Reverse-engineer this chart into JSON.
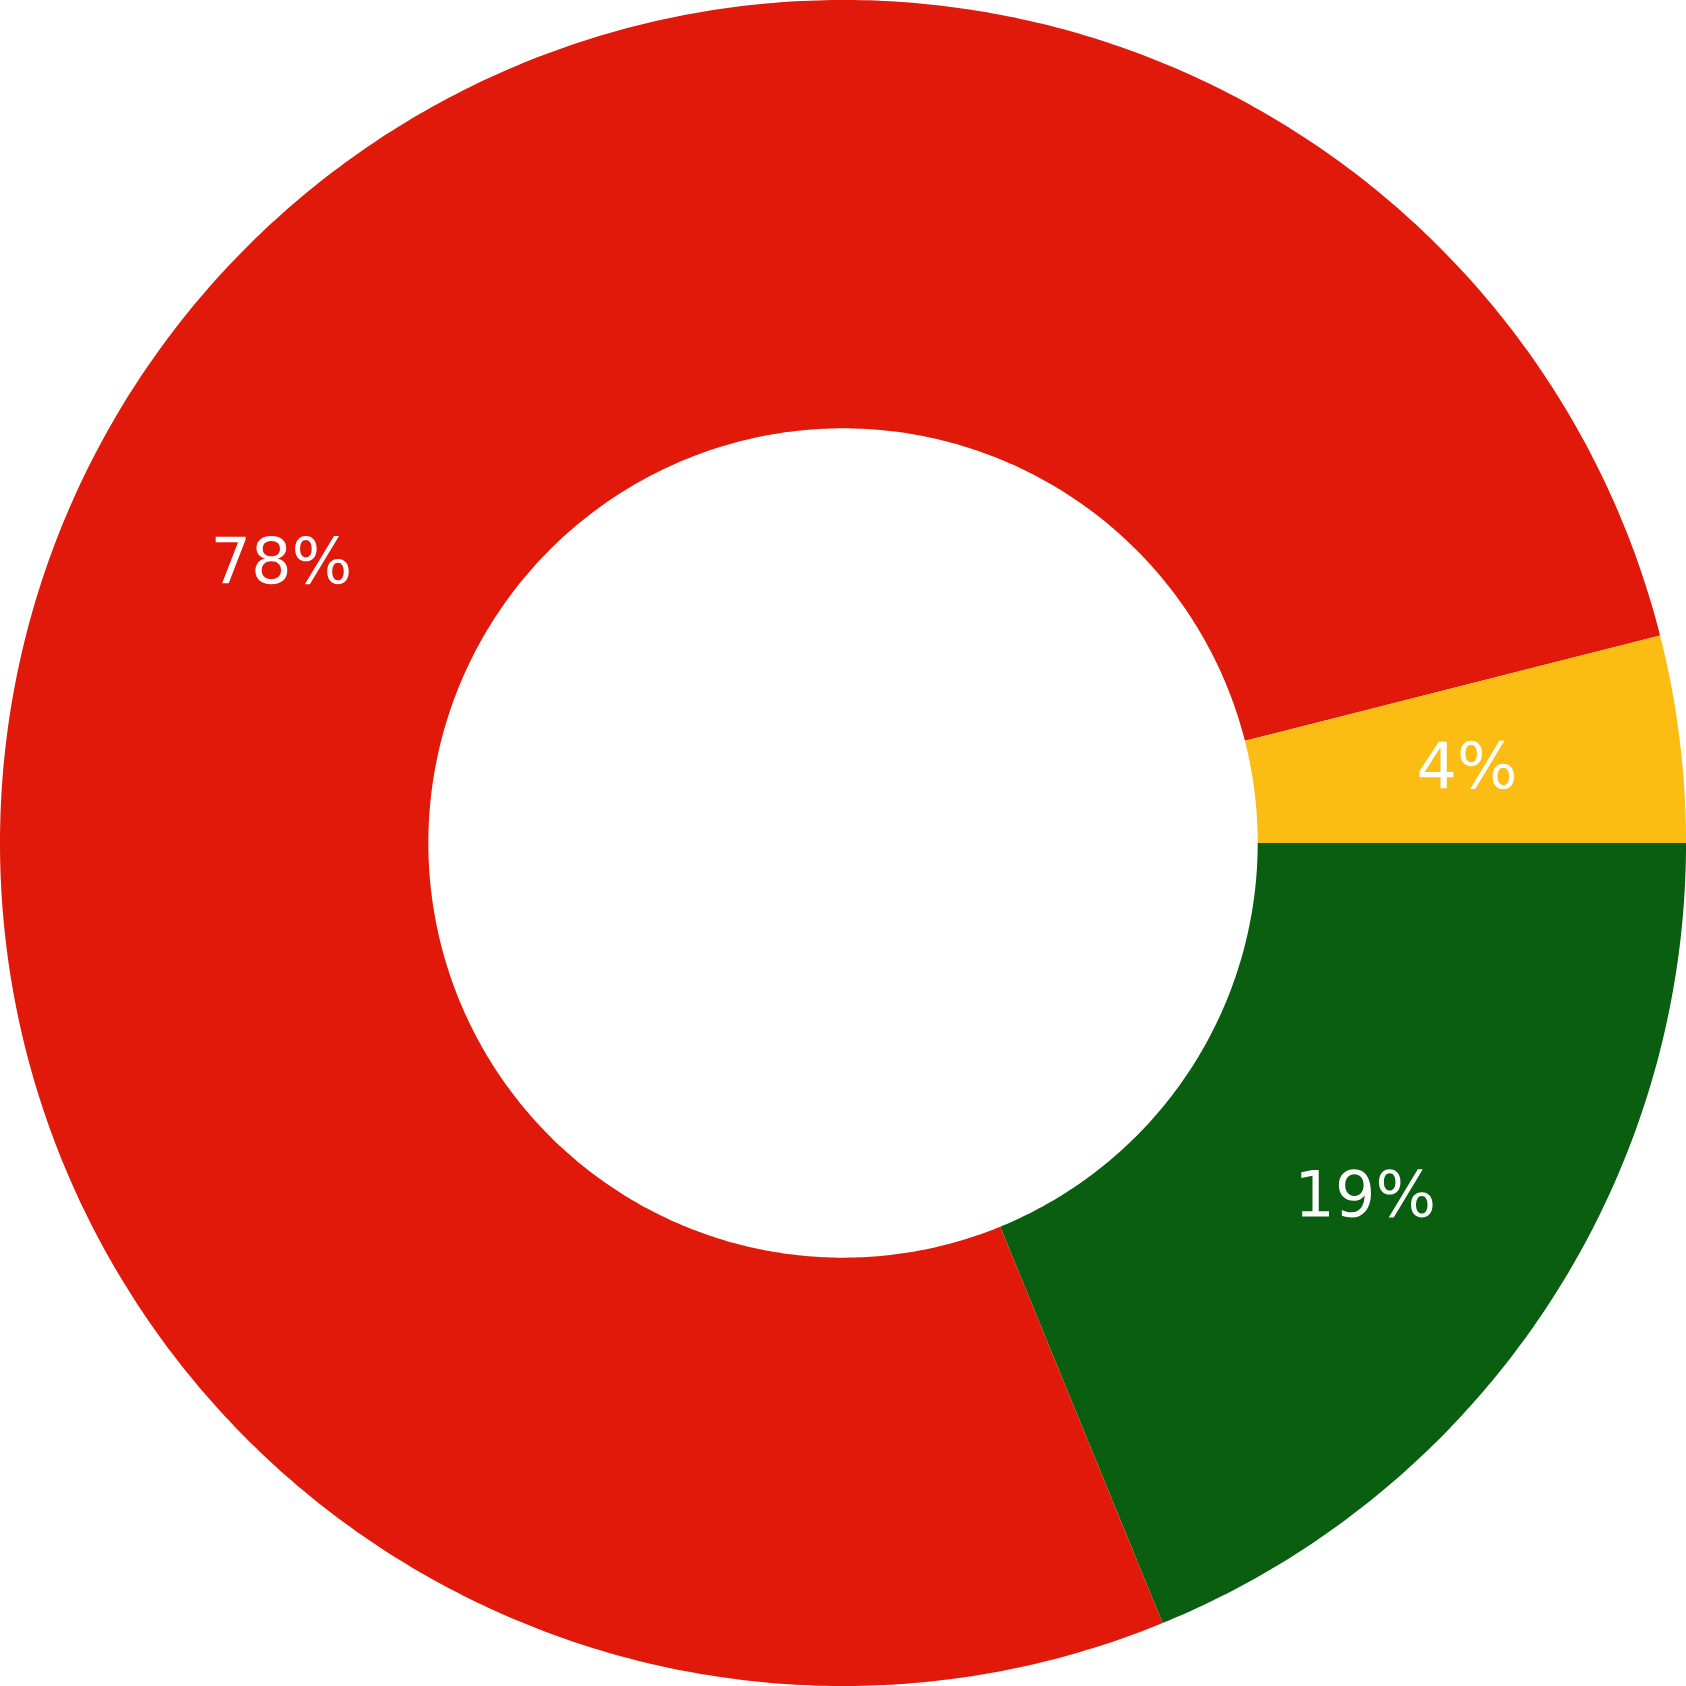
{
  "chart_data": {
    "type": "donut",
    "categories": [
      null,
      null,
      null
    ],
    "values": [
      19,
      78,
      4
    ],
    "colors": [
      "#0a5e10",
      "#e0190a",
      "#fbbd14"
    ],
    "value_labels": [
      "19%",
      "78%",
      "4%"
    ]
  }
}
